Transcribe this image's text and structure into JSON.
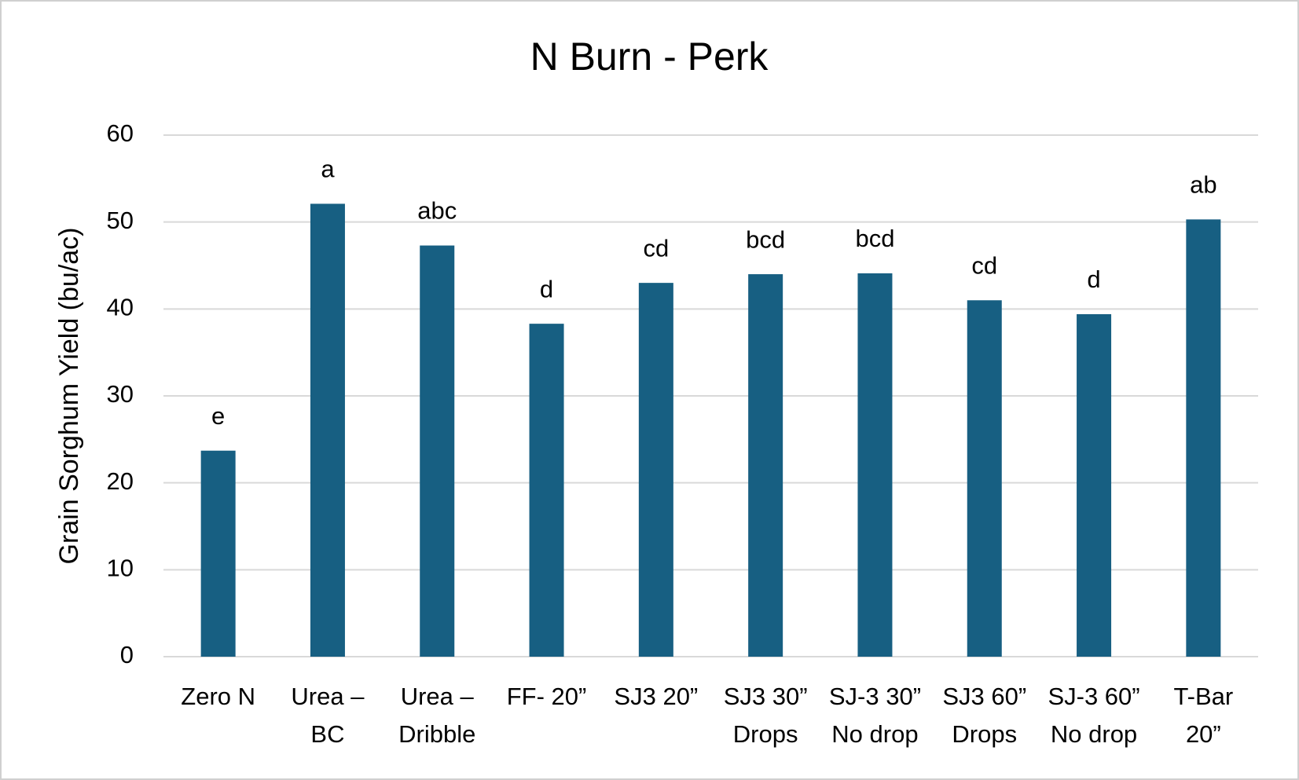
{
  "chart_data": {
    "type": "bar",
    "title": "N Burn - Perk",
    "y_label": "Grain Sorghum Yield (bu/ac)",
    "categories": [
      [
        "Zero N"
      ],
      [
        "Urea –",
        "BC"
      ],
      [
        "Urea –",
        "Dribble"
      ],
      [
        "FF- 20”"
      ],
      [
        "SJ3 20”"
      ],
      [
        "SJ3 30”",
        "Drops"
      ],
      [
        "SJ-3 30”",
        "No drop"
      ],
      [
        "SJ3 60”",
        "Drops"
      ],
      [
        "SJ-3 60”",
        "No drop"
      ],
      [
        "T-Bar",
        "20”"
      ]
    ],
    "values": [
      23.7,
      52.1,
      47.3,
      38.3,
      43.0,
      44.0,
      44.1,
      41.0,
      39.4,
      50.3
    ],
    "letters": [
      "e",
      "a",
      "abc",
      "d",
      "cd",
      "bcd",
      "bcd",
      "cd",
      "d",
      "ab"
    ],
    "color": "#175f82",
    "ylim": [
      0,
      60
    ],
    "yticks": [
      0,
      10,
      20,
      30,
      40,
      50,
      60
    ],
    "grid": true
  }
}
